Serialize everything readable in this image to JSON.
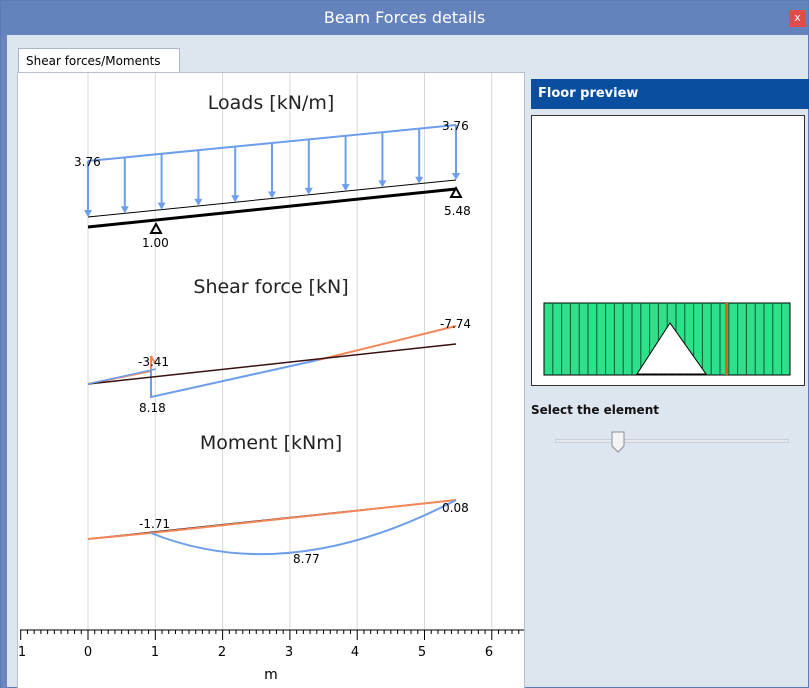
{
  "window": {
    "title": "Beam Forces details",
    "close_label": "x"
  },
  "tab": {
    "label": "Shear forces/Moments"
  },
  "right_panel": {
    "header": "Floor preview",
    "select_label": "Select the element",
    "slider_value": 0.27
  },
  "chart_data": {
    "type": "line",
    "xlabel": "m",
    "xlim": [
      -1,
      6.5
    ],
    "x_ticks": [
      "1",
      "0",
      "1",
      "2",
      "3",
      "4",
      "5",
      "6"
    ],
    "panels": [
      {
        "title": "Loads [kN/m]",
        "series": [
          {
            "name": "",
            "x": [
              0,
              5.5
            ],
            "values": [
              3.76,
              3.76
            ],
            "color": "#6d9eeb"
          }
        ],
        "labels": [
          {
            "text": "3.76",
            "x": 0
          },
          {
            "text": "3.76",
            "x": 5.5
          },
          {
            "text": "1.00",
            "x": 1
          },
          {
            "text": "5.48",
            "x": 5.5
          }
        ],
        "supports": [
          1.0,
          5.48
        ]
      },
      {
        "title": "Shear force [kN]",
        "labels": [
          {
            "text": "-3.41",
            "x": 1
          },
          {
            "text": "8.18",
            "x": 1
          },
          {
            "text": "-7.74",
            "x": 5.5
          }
        ]
      },
      {
        "title": "Moment [kNm]",
        "labels": [
          {
            "text": "-1.71",
            "x": 1
          },
          {
            "text": "8.77",
            "x": 3.2
          },
          {
            "text": "0.08",
            "x": 5.5
          }
        ]
      }
    ],
    "colors": {
      "load": "#6d9eeb",
      "positive": "#f4875a",
      "negative": "#6d9eeb",
      "beam": "#000000",
      "axis_line": "#5a1e1e"
    }
  }
}
